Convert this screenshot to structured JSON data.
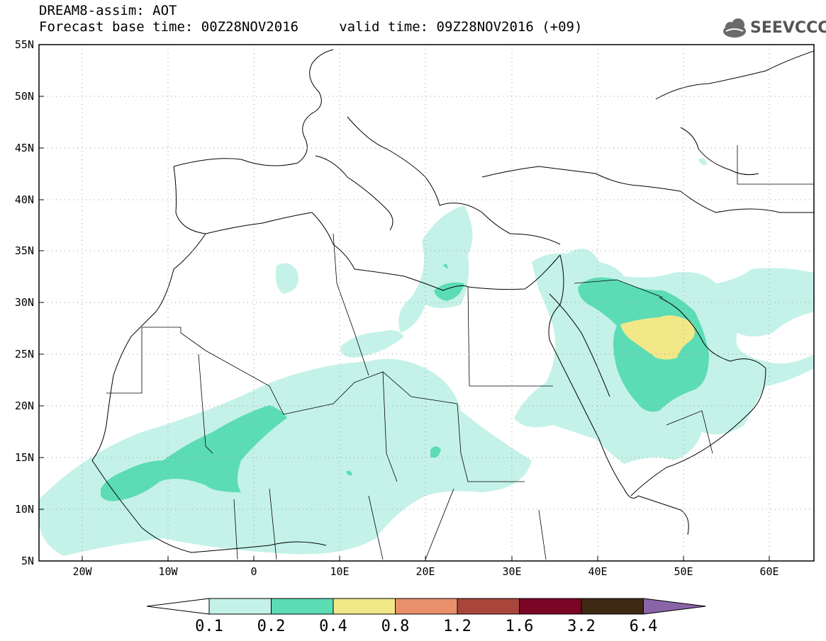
{
  "header": {
    "line1": "DREAM8-assim: AOT",
    "line2": "Forecast base time: 00Z28NOV2016     valid time: 09Z28NOV2016 (+09)"
  },
  "logo": {
    "text": "SEEVCCC",
    "icon": "cloud-icon"
  },
  "map": {
    "lon_range": [
      -25,
      65
    ],
    "lat_range": [
      5,
      55
    ],
    "lat_labels": [
      "55N",
      "50N",
      "45N",
      "40N",
      "35N",
      "30N",
      "25N",
      "20N",
      "15N",
      "10N",
      "5N"
    ],
    "lon_labels": [
      "20W",
      "10W",
      "0",
      "10E",
      "20E",
      "30E",
      "40E",
      "50E",
      "60E"
    ]
  },
  "colorbar": {
    "labels": [
      "0.1",
      "0.2",
      "0.4",
      "0.8",
      "1.2",
      "1.6",
      "3.2",
      "6.4"
    ],
    "colors": [
      "#ffffff",
      "#c4f2e8",
      "#5cdcb4",
      "#f2e888",
      "#e9906a",
      "#a8463b",
      "#7a0524",
      "#3d2914",
      "#8a64a8"
    ]
  }
}
